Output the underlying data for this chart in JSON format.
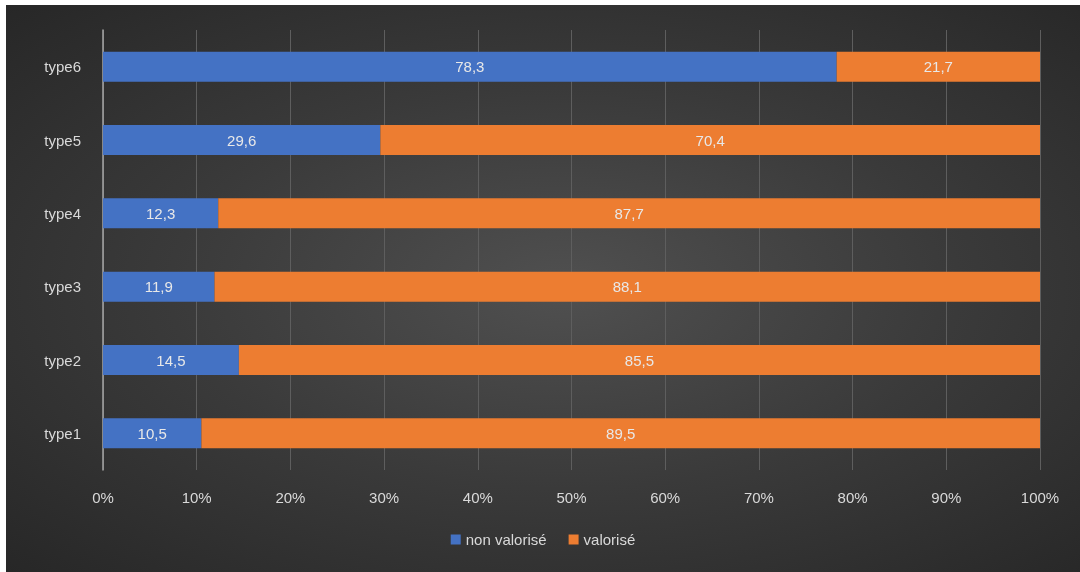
{
  "chart_data": {
    "type": "bar",
    "orientation": "horizontal",
    "stacked": true,
    "categories": [
      "type6",
      "type5",
      "type4",
      "type3",
      "type2",
      "type1"
    ],
    "series": [
      {
        "name": "non valorisé",
        "color": "#4472c4",
        "values": [
          78.3,
          29.6,
          12.3,
          11.9,
          14.5,
          10.5
        ],
        "value_labels": [
          "78,3",
          "29,6",
          "12,3",
          "11,9",
          "14,5",
          "10,5"
        ]
      },
      {
        "name": "valorisé",
        "color": "#ed7d31",
        "values": [
          21.7,
          70.4,
          87.7,
          88.1,
          85.5,
          89.5
        ],
        "value_labels": [
          "21,7",
          "70,4",
          "87,7",
          "88,1",
          "85,5",
          "89,5"
        ]
      }
    ],
    "xlim": [
      0,
      100
    ],
    "xticks": [
      {
        "value": 0,
        "label": "0%"
      },
      {
        "value": 10,
        "label": "10%"
      },
      {
        "value": 20,
        "label": "20%"
      },
      {
        "value": 30,
        "label": "30%"
      },
      {
        "value": 40,
        "label": "40%"
      },
      {
        "value": 50,
        "label": "50%"
      },
      {
        "value": 60,
        "label": "60%"
      },
      {
        "value": 70,
        "label": "70%"
      },
      {
        "value": 80,
        "label": "80%"
      },
      {
        "value": 90,
        "label": "90%"
      },
      {
        "value": 100,
        "label": "100%"
      }
    ],
    "grid": "x",
    "legend": "bottom"
  }
}
